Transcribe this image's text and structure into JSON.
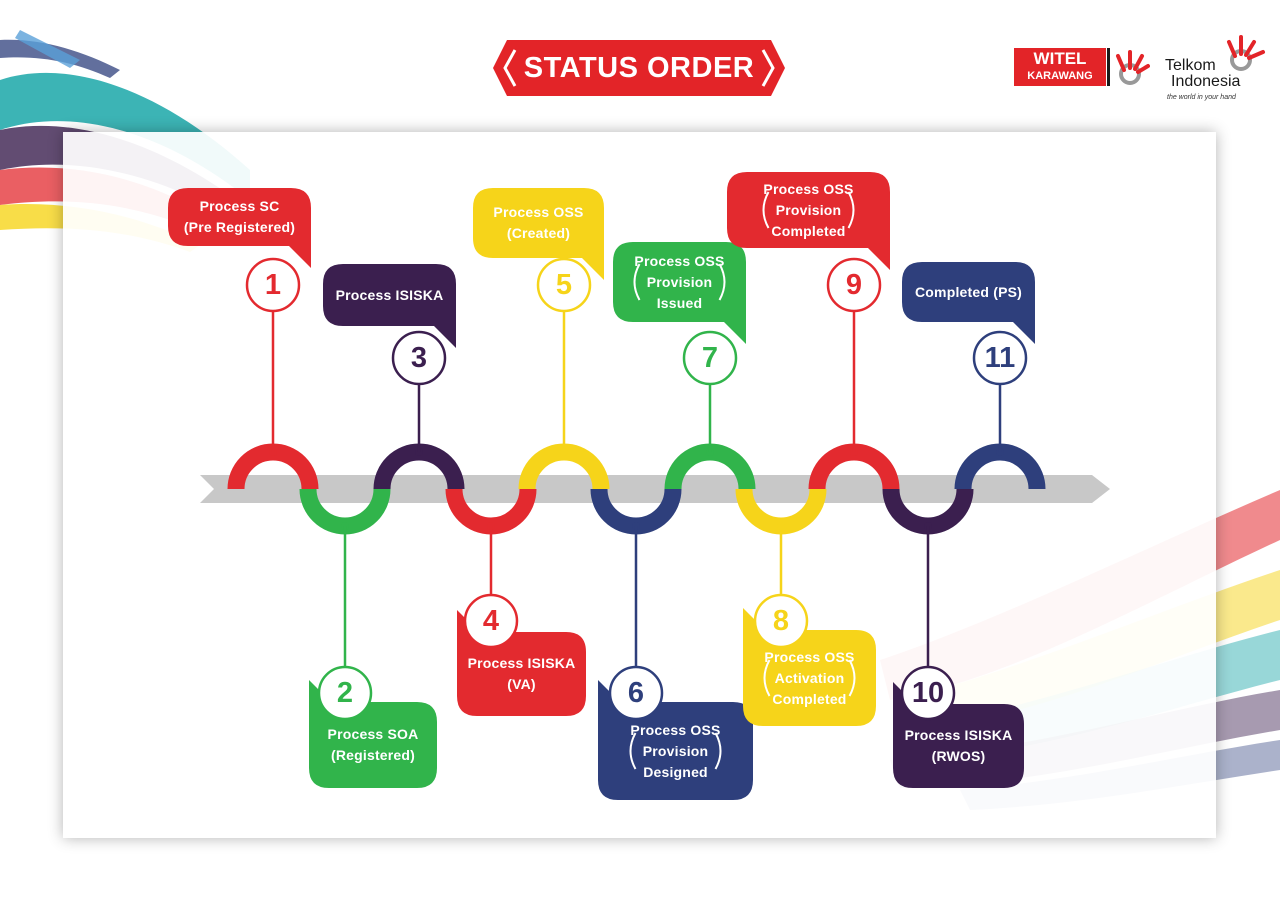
{
  "title": "STATUS ORDER",
  "logos": {
    "witel_line1": "WITEL",
    "witel_line2": "KARAWANG",
    "telkom_line1": "Telkom",
    "telkom_line2": "Indonesia",
    "telkom_tagline": "the world in your hand"
  },
  "colors": {
    "red": "#e32a2f",
    "purple": "#3b1f4f",
    "yellow": "#f6d41a",
    "green": "#31b44b",
    "navy": "#2e3f7c",
    "arrow": "#c8c8c8"
  },
  "steps": [
    {
      "number": "1",
      "lines": [
        "Process SC",
        "(Pre Registered)"
      ],
      "color": "#e32a2f"
    },
    {
      "number": "2",
      "lines": [
        "Process SOA",
        "(Registered)"
      ],
      "color": "#31b44b"
    },
    {
      "number": "3",
      "lines": [
        "Process ISISKA"
      ],
      "color": "#3b1f4f"
    },
    {
      "number": "4",
      "lines": [
        "Process ISISKA",
        "(VA)"
      ],
      "color": "#e32a2f"
    },
    {
      "number": "5",
      "lines": [
        "Process OSS",
        "(Created)"
      ],
      "color": "#f6d41a"
    },
    {
      "number": "6",
      "lines": [
        "Process OSS",
        "Provision",
        "Designed"
      ],
      "color": "#2e3f7c"
    },
    {
      "number": "7",
      "lines": [
        "Process OSS",
        "Provision",
        "Issued"
      ],
      "color": "#31b44b"
    },
    {
      "number": "8",
      "lines": [
        "Process OSS",
        "Activation",
        "Completed"
      ],
      "color": "#f6d41a"
    },
    {
      "number": "9",
      "lines": [
        "Process OSS",
        "Provision",
        "Completed"
      ],
      "color": "#e32a2f"
    },
    {
      "number": "10",
      "lines": [
        "Process ISISKA",
        "(RWOS)"
      ],
      "color": "#3b1f4f"
    },
    {
      "number": "11",
      "lines": [
        "Completed (PS)"
      ],
      "color": "#2e3f7c"
    }
  ]
}
